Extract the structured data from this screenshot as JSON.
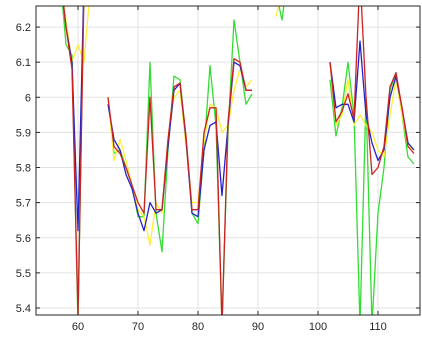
{
  "chart_data": {
    "type": "line",
    "title": "",
    "xlabel": "",
    "ylabel": "",
    "xlim": [
      53,
      117
    ],
    "ylim": [
      5.38,
      6.26
    ],
    "grid": true,
    "x_ticks": [
      60,
      70,
      80,
      90,
      100,
      110
    ],
    "y_ticks": [
      5.4,
      5.5,
      5.6,
      5.7,
      5.8,
      5.9,
      6,
      6.1,
      6.2
    ],
    "x_tick_labels": [
      "60",
      "70",
      "80",
      "90",
      "100",
      "110"
    ],
    "y_tick_labels": [
      "5.4",
      "5.5",
      "5.6",
      "5.7",
      "5.8",
      "5.9",
      "6",
      "6.1",
      "6.2"
    ],
    "series": [
      {
        "color": "#33dd33",
        "points": [
          [
            57,
            6.35
          ],
          [
            58,
            6.15
          ],
          [
            59,
            6.12
          ],
          [
            60,
            5.35
          ],
          [
            61,
            6.35
          ],
          [
            62,
            6.35
          ],
          [
            65,
            6.0
          ],
          [
            66,
            5.84
          ],
          [
            67,
            5.85
          ],
          [
            68,
            5.8
          ],
          [
            69,
            5.75
          ],
          [
            70,
            5.66
          ],
          [
            71,
            5.66
          ],
          [
            72,
            6.1
          ],
          [
            73,
            5.67
          ],
          [
            74,
            5.56
          ],
          [
            75,
            5.85
          ],
          [
            76,
            6.06
          ],
          [
            77,
            6.05
          ],
          [
            78,
            5.88
          ],
          [
            79,
            5.67
          ],
          [
            80,
            5.64
          ],
          [
            81,
            5.85
          ],
          [
            82,
            6.09
          ],
          [
            83,
            5.92
          ],
          [
            84,
            5.35
          ],
          [
            85,
            5.9
          ],
          [
            86,
            6.22
          ],
          [
            87,
            6.1
          ],
          [
            88,
            5.98
          ],
          [
            89,
            6.01
          ],
          [
            91,
            6.35
          ],
          [
            93,
            6.3
          ],
          [
            94,
            6.22
          ],
          [
            95,
            6.35
          ],
          [
            102,
            6.05
          ],
          [
            103,
            5.89
          ],
          [
            104,
            5.97
          ],
          [
            105,
            6.1
          ],
          [
            106,
            5.95
          ],
          [
            107,
            5.35
          ],
          [
            108,
            6.0
          ],
          [
            109,
            5.35
          ],
          [
            110,
            5.67
          ],
          [
            111,
            5.8
          ],
          [
            112,
            6.02
          ],
          [
            113,
            6.07
          ],
          [
            114,
            5.95
          ],
          [
            115,
            5.83
          ],
          [
            116,
            5.81
          ]
        ]
      },
      {
        "color": "#ffee33",
        "points": [
          [
            57,
            6.35
          ],
          [
            58,
            6.22
          ],
          [
            59,
            6.1
          ],
          [
            60,
            6.15
          ],
          [
            61,
            6.1
          ],
          [
            62,
            6.3
          ],
          [
            65,
            6.0
          ],
          [
            66,
            5.82
          ],
          [
            67,
            5.88
          ],
          [
            68,
            5.82
          ],
          [
            69,
            5.75
          ],
          [
            70,
            5.68
          ],
          [
            71,
            5.66
          ],
          [
            72,
            5.58
          ],
          [
            73,
            5.7
          ],
          [
            74,
            5.67
          ],
          [
            75,
            5.88
          ],
          [
            76,
            6.0
          ],
          [
            77,
            6.02
          ],
          [
            78,
            5.86
          ],
          [
            79,
            5.7
          ],
          [
            80,
            5.7
          ],
          [
            81,
            5.87
          ],
          [
            82,
            5.98
          ],
          [
            83,
            5.97
          ],
          [
            84,
            5.9
          ],
          [
            85,
            5.92
          ],
          [
            86,
            6.02
          ],
          [
            87,
            6.08
          ],
          [
            88,
            6.03
          ],
          [
            89,
            6.05
          ],
          [
            91,
            6.3
          ],
          [
            93,
            6.23
          ],
          [
            94,
            6.3
          ],
          [
            95,
            6.35
          ],
          [
            102,
            6.1
          ],
          [
            103,
            5.92
          ],
          [
            104,
            5.95
          ],
          [
            105,
            6.05
          ],
          [
            106,
            5.92
          ],
          [
            107,
            5.95
          ],
          [
            108,
            5.92
          ],
          [
            109,
            5.9
          ],
          [
            110,
            5.85
          ],
          [
            111,
            5.83
          ],
          [
            112,
            5.95
          ],
          [
            113,
            6.05
          ],
          [
            114,
            5.95
          ],
          [
            115,
            5.86
          ],
          [
            116,
            5.85
          ]
        ]
      },
      {
        "color": "#2222cc",
        "points": [
          [
            57,
            6.35
          ],
          [
            58,
            6.2
          ],
          [
            59,
            6.1
          ],
          [
            60,
            5.62
          ],
          [
            61,
            6.33
          ],
          [
            62,
            6.35
          ],
          [
            65,
            5.98
          ],
          [
            66,
            5.88
          ],
          [
            67,
            5.85
          ],
          [
            68,
            5.78
          ],
          [
            69,
            5.74
          ],
          [
            70,
            5.67
          ],
          [
            71,
            5.62
          ],
          [
            72,
            5.7
          ],
          [
            73,
            5.67
          ],
          [
            74,
            5.68
          ],
          [
            75,
            5.86
          ],
          [
            76,
            6.02
          ],
          [
            77,
            6.04
          ],
          [
            78,
            5.88
          ],
          [
            79,
            5.67
          ],
          [
            80,
            5.66
          ],
          [
            81,
            5.85
          ],
          [
            82,
            5.92
          ],
          [
            83,
            5.93
          ],
          [
            84,
            5.72
          ],
          [
            85,
            5.92
          ],
          [
            86,
            6.1
          ],
          [
            87,
            6.09
          ],
          [
            88,
            6.02
          ],
          [
            89,
            6.02
          ],
          [
            102,
            6.1
          ],
          [
            103,
            5.97
          ],
          [
            104,
            5.98
          ],
          [
            105,
            5.98
          ],
          [
            106,
            5.93
          ],
          [
            107,
            6.16
          ],
          [
            108,
            5.95
          ],
          [
            109,
            5.87
          ],
          [
            110,
            5.82
          ],
          [
            111,
            5.85
          ],
          [
            112,
            6.0
          ],
          [
            113,
            6.06
          ],
          [
            114,
            5.97
          ],
          [
            115,
            5.87
          ],
          [
            116,
            5.85
          ]
        ]
      },
      {
        "color": "#cc2222",
        "points": [
          [
            57,
            6.35
          ],
          [
            58,
            6.2
          ],
          [
            59,
            6.08
          ],
          [
            60,
            5.38
          ],
          [
            61,
            6.3
          ],
          [
            62,
            6.35
          ],
          [
            65,
            6.0
          ],
          [
            66,
            5.86
          ],
          [
            67,
            5.84
          ],
          [
            68,
            5.8
          ],
          [
            69,
            5.75
          ],
          [
            70,
            5.7
          ],
          [
            71,
            5.67
          ],
          [
            72,
            6.0
          ],
          [
            73,
            5.68
          ],
          [
            74,
            5.68
          ],
          [
            75,
            5.88
          ],
          [
            76,
            6.03
          ],
          [
            77,
            6.04
          ],
          [
            78,
            5.89
          ],
          [
            79,
            5.68
          ],
          [
            80,
            5.68
          ],
          [
            81,
            5.9
          ],
          [
            82,
            5.97
          ],
          [
            83,
            5.97
          ],
          [
            84,
            5.35
          ],
          [
            85,
            5.93
          ],
          [
            86,
            6.11
          ],
          [
            87,
            6.1
          ],
          [
            88,
            6.02
          ],
          [
            89,
            6.02
          ],
          [
            102,
            6.1
          ],
          [
            103,
            5.93
          ],
          [
            104,
            5.96
          ],
          [
            105,
            6.01
          ],
          [
            106,
            5.94
          ],
          [
            107,
            6.35
          ],
          [
            108,
            6.0
          ],
          [
            109,
            5.78
          ],
          [
            110,
            5.8
          ],
          [
            111,
            5.86
          ],
          [
            112,
            6.03
          ],
          [
            113,
            6.07
          ],
          [
            114,
            5.97
          ],
          [
            115,
            5.86
          ],
          [
            116,
            5.84
          ]
        ]
      }
    ]
  }
}
